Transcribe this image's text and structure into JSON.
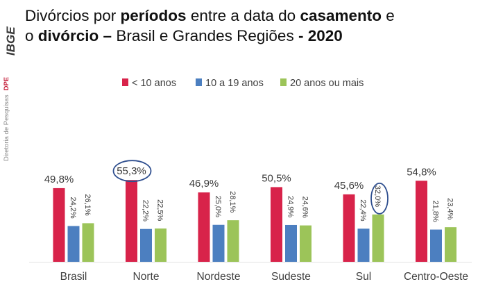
{
  "brand": {
    "logo_text": "IBGE",
    "department": "Diretoria de Pesquisas",
    "department_code": "DPE"
  },
  "title": {
    "line1": [
      {
        "text": "Divórcios por ",
        "bold": false
      },
      {
        "text": "períodos",
        "bold": true
      },
      {
        "text": " entre a data do ",
        "bold": false
      },
      {
        "text": "casamento",
        "bold": true
      },
      {
        "text": " e",
        "bold": false
      }
    ],
    "line2": [
      {
        "text": "o ",
        "bold": false
      },
      {
        "text": "divórcio –",
        "bold": true
      },
      {
        "text": " Brasil e Grandes Regiões ",
        "bold": false
      },
      {
        "text": "- 2020",
        "bold": true
      }
    ]
  },
  "colors": {
    "brand_red": "#c41e3a",
    "highlight_circle": "#2f4f8f"
  },
  "chart_data": {
    "type": "bar",
    "title": "",
    "xlabel": "",
    "ylabel": "",
    "ylim": [
      0,
      60
    ],
    "grid": false,
    "legend_position": "top",
    "categories": [
      "Brasil",
      "Norte",
      "Nordeste",
      "Sudeste",
      "Sul",
      "Centro-Oeste"
    ],
    "series": [
      {
        "name": "< 10 anos",
        "color": "#d8234a",
        "values": [
          49.8,
          55.3,
          46.9,
          50.5,
          45.6,
          54.8
        ],
        "labels": [
          "49,8%",
          "55,3%",
          "46,9%",
          "50,5%",
          "45,6%",
          "54,8%"
        ]
      },
      {
        "name": "10 a 19 anos",
        "color": "#4c7fc0",
        "values": [
          24.2,
          22.2,
          25.0,
          24.9,
          22.4,
          21.8
        ],
        "labels": [
          "24,2%",
          "22,2%",
          "25,0%",
          "24,9%",
          "22,4%",
          "21,8%"
        ]
      },
      {
        "name": "20 anos ou mais",
        "color": "#9cc459",
        "values": [
          26.1,
          22.5,
          28.1,
          24.6,
          32.0,
          23.4
        ],
        "labels": [
          "26,1%",
          "22,5%",
          "28,1%",
          "24,6%",
          "32,0%",
          "23,4%"
        ]
      }
    ],
    "highlighted": [
      {
        "category": "Norte",
        "series": "< 10 anos"
      },
      {
        "category": "Sul",
        "series": "20 anos ou mais"
      }
    ]
  }
}
